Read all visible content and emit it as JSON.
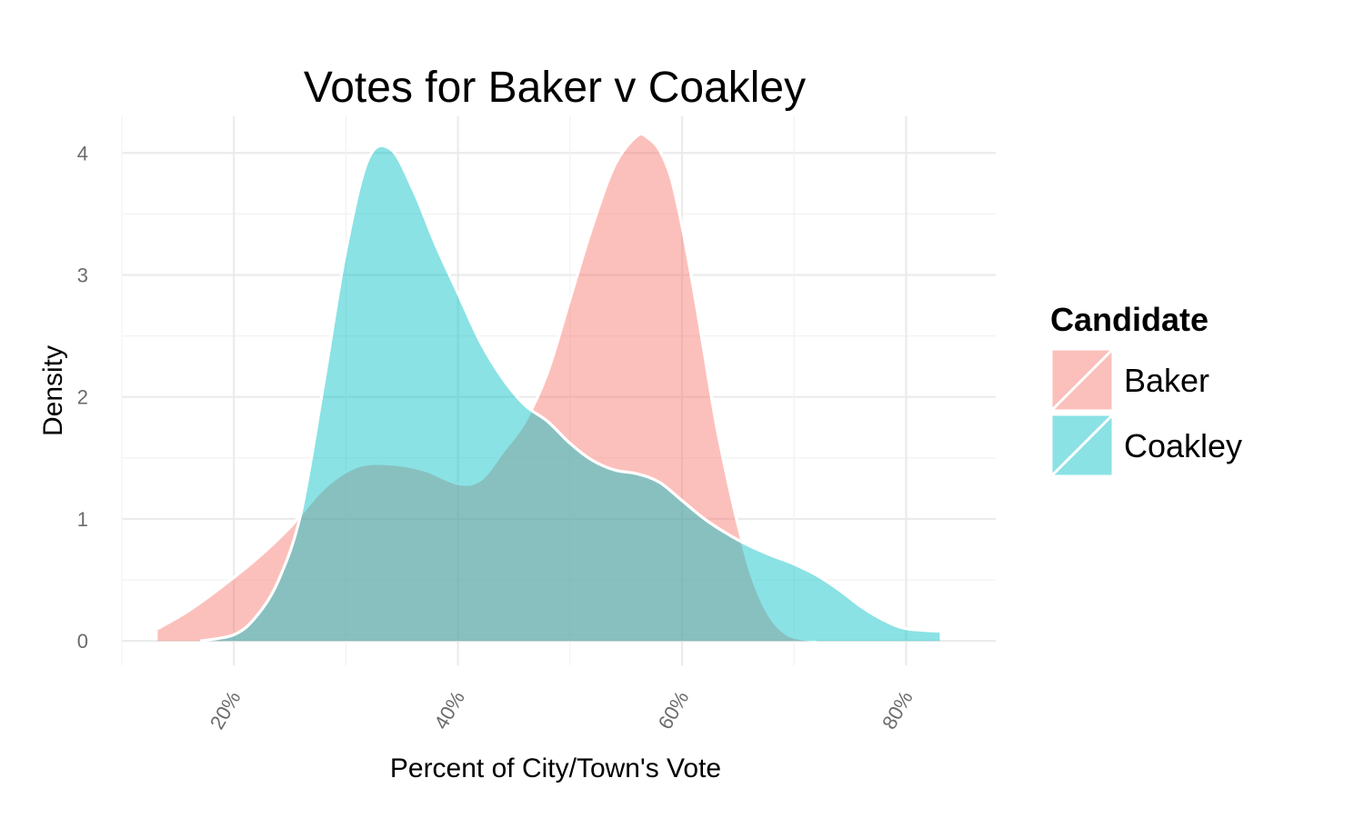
{
  "chart_data": {
    "type": "area",
    "subtype": "density",
    "title": "Votes for Baker v Coakley",
    "xlabel": "Percent of City/Town's Vote",
    "ylabel": "Density",
    "xlim": [
      0.1,
      0.88
    ],
    "ylim": [
      -0.2,
      4.3
    ],
    "x_ticks": [
      0.2,
      0.4,
      0.6,
      0.8
    ],
    "x_tick_labels": [
      "20%",
      "40%",
      "60%",
      "80%"
    ],
    "y_ticks": [
      0,
      1,
      2,
      3,
      4
    ],
    "y_tick_labels": [
      "0",
      "1",
      "2",
      "3",
      "4"
    ],
    "grid": true,
    "legend": {
      "title": "Candidate",
      "position": "right"
    },
    "series": [
      {
        "name": "Baker",
        "color": "#F8766D",
        "x": [
          0.132,
          0.16,
          0.19,
          0.22,
          0.25,
          0.28,
          0.31,
          0.34,
          0.37,
          0.4,
          0.42,
          0.44,
          0.46,
          0.48,
          0.5,
          0.52,
          0.54,
          0.56,
          0.57,
          0.58,
          0.59,
          0.6,
          0.61,
          0.62,
          0.63,
          0.64,
          0.65,
          0.66,
          0.67,
          0.68,
          0.69,
          0.7,
          0.72
        ],
        "y": [
          0.1,
          0.25,
          0.45,
          0.67,
          0.93,
          1.25,
          1.43,
          1.45,
          1.4,
          1.29,
          1.32,
          1.55,
          1.8,
          2.2,
          2.8,
          3.4,
          3.9,
          4.14,
          4.12,
          4.02,
          3.8,
          3.4,
          2.9,
          2.35,
          1.8,
          1.35,
          0.95,
          0.6,
          0.35,
          0.18,
          0.08,
          0.03,
          0.0
        ]
      },
      {
        "name": "Coakley",
        "color": "#00BFC4",
        "x": [
          0.17,
          0.2,
          0.22,
          0.24,
          0.26,
          0.28,
          0.3,
          0.32,
          0.34,
          0.36,
          0.38,
          0.4,
          0.42,
          0.44,
          0.46,
          0.48,
          0.5,
          0.52,
          0.54,
          0.56,
          0.58,
          0.6,
          0.62,
          0.64,
          0.66,
          0.68,
          0.7,
          0.72,
          0.74,
          0.76,
          0.78,
          0.8,
          0.83
        ],
        "y": [
          0.0,
          0.05,
          0.2,
          0.5,
          1.05,
          2.1,
          3.2,
          3.95,
          4.03,
          3.7,
          3.25,
          2.85,
          2.45,
          2.15,
          1.93,
          1.8,
          1.62,
          1.48,
          1.4,
          1.37,
          1.3,
          1.15,
          1.0,
          0.88,
          0.78,
          0.7,
          0.63,
          0.54,
          0.42,
          0.28,
          0.17,
          0.1,
          0.08
        ]
      }
    ]
  }
}
